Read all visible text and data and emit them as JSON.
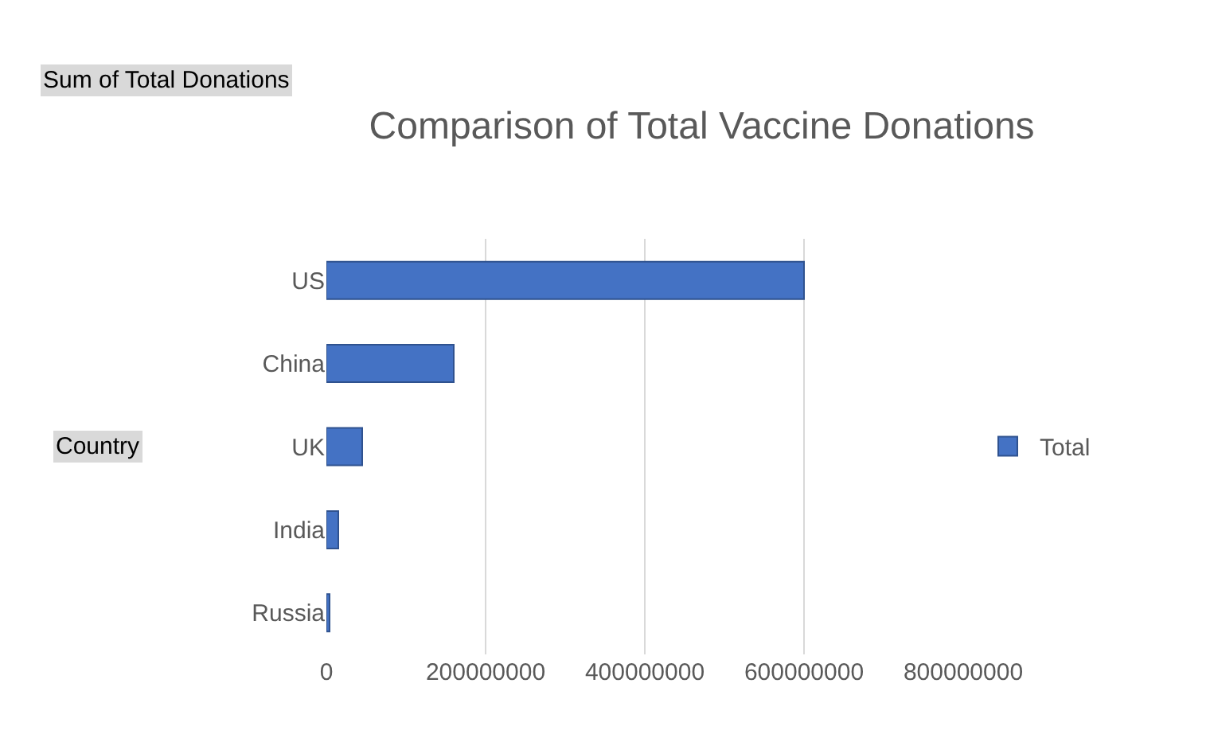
{
  "chart_data": {
    "type": "bar",
    "orientation": "horizontal",
    "title": "Comparison of Total Vaccine Donations",
    "ylabel": "Country",
    "annotations": [
      "Sum of Total Donations"
    ],
    "categories": [
      "US",
      "China",
      "UK",
      "India",
      "Russia"
    ],
    "series": [
      {
        "name": "Total",
        "color": "#4472c4",
        "values": [
          600000000,
          160000000,
          45000000,
          15000000,
          4000000
        ]
      }
    ],
    "xlim": [
      0,
      800000000
    ],
    "xticks": [
      0,
      200000000,
      400000000,
      600000000,
      800000000
    ],
    "grid": "x",
    "legend": "right"
  }
}
